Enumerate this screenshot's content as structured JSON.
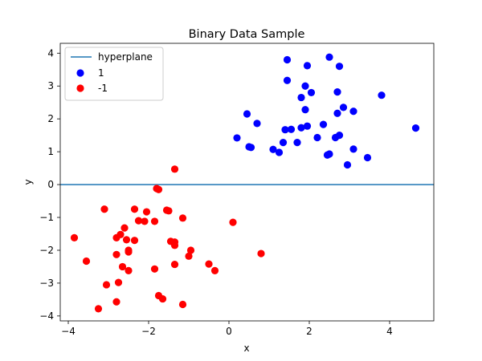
{
  "chart_data": {
    "type": "scatter",
    "title": "Binary Data Sample",
    "xlabel": "x",
    "ylabel": "y",
    "xlim": [
      -4.2,
      5.1
    ],
    "ylim": [
      -4.15,
      4.3
    ],
    "xticks": [
      -4,
      -2,
      0,
      2,
      4
    ],
    "yticks": [
      -4,
      -3,
      -2,
      -1,
      0,
      1,
      2,
      3,
      4
    ],
    "grid": false,
    "legend_position": "top-left",
    "hyperplane": {
      "name": "hyperplane",
      "y": 0,
      "color": "#1f77b4"
    },
    "series": [
      {
        "name": "1",
        "color": "#0000ff",
        "points": [
          [
            1.45,
            3.8
          ],
          [
            1.95,
            3.62
          ],
          [
            2.5,
            3.88
          ],
          [
            2.75,
            3.6
          ],
          [
            1.45,
            3.17
          ],
          [
            1.9,
            3.0
          ],
          [
            2.05,
            2.8
          ],
          [
            1.8,
            2.65
          ],
          [
            2.7,
            2.82
          ],
          [
            3.8,
            2.72
          ],
          [
            1.9,
            2.28
          ],
          [
            2.85,
            2.35
          ],
          [
            3.1,
            2.23
          ],
          [
            0.45,
            2.15
          ],
          [
            2.7,
            2.17
          ],
          [
            0.7,
            1.86
          ],
          [
            1.4,
            1.67
          ],
          [
            1.55,
            1.68
          ],
          [
            1.8,
            1.73
          ],
          [
            1.95,
            1.78
          ],
          [
            2.35,
            1.83
          ],
          [
            4.65,
            1.72
          ],
          [
            0.2,
            1.42
          ],
          [
            2.2,
            1.43
          ],
          [
            2.65,
            1.43
          ],
          [
            2.75,
            1.5
          ],
          [
            1.35,
            1.28
          ],
          [
            1.7,
            1.28
          ],
          [
            0.55,
            1.13
          ],
          [
            0.5,
            1.15
          ],
          [
            1.1,
            1.07
          ],
          [
            1.25,
            0.98
          ],
          [
            3.1,
            1.08
          ],
          [
            2.5,
            0.93
          ],
          [
            2.45,
            0.9
          ],
          [
            3.45,
            0.82
          ],
          [
            2.95,
            0.6
          ]
        ]
      },
      {
        "name": "-1",
        "color": "#ff0000",
        "points": [
          [
            -1.35,
            0.47
          ],
          [
            -1.8,
            -0.12
          ],
          [
            -1.75,
            -0.15
          ],
          [
            -3.1,
            -0.75
          ],
          [
            -2.35,
            -0.75
          ],
          [
            -1.55,
            -0.78
          ],
          [
            -1.5,
            -0.8
          ],
          [
            -2.05,
            -0.83
          ],
          [
            -2.25,
            -1.1
          ],
          [
            -2.1,
            -1.12
          ],
          [
            -1.85,
            -1.12
          ],
          [
            -1.15,
            -1.02
          ],
          [
            0.1,
            -1.15
          ],
          [
            -2.6,
            -1.32
          ],
          [
            -2.7,
            -1.52
          ],
          [
            -2.8,
            -1.62
          ],
          [
            -2.55,
            -1.68
          ],
          [
            -2.35,
            -1.7
          ],
          [
            -1.45,
            -1.73
          ],
          [
            -1.35,
            -1.75
          ],
          [
            -1.35,
            -1.85
          ],
          [
            -3.85,
            -1.62
          ],
          [
            -2.5,
            -2.0
          ],
          [
            -2.5,
            -2.05
          ],
          [
            -0.95,
            -2.0
          ],
          [
            -2.8,
            -2.13
          ],
          [
            -1.0,
            -2.18
          ],
          [
            0.8,
            -2.1
          ],
          [
            -3.55,
            -2.33
          ],
          [
            -2.65,
            -2.5
          ],
          [
            -1.35,
            -2.43
          ],
          [
            -0.5,
            -2.42
          ],
          [
            -1.85,
            -2.57
          ],
          [
            -2.5,
            -2.62
          ],
          [
            -0.35,
            -2.62
          ],
          [
            -2.75,
            -2.98
          ],
          [
            -3.05,
            -3.05
          ],
          [
            -1.75,
            -3.38
          ],
          [
            -1.65,
            -3.48
          ],
          [
            -2.8,
            -3.57
          ],
          [
            -1.15,
            -3.65
          ],
          [
            -3.25,
            -3.78
          ]
        ]
      }
    ]
  }
}
